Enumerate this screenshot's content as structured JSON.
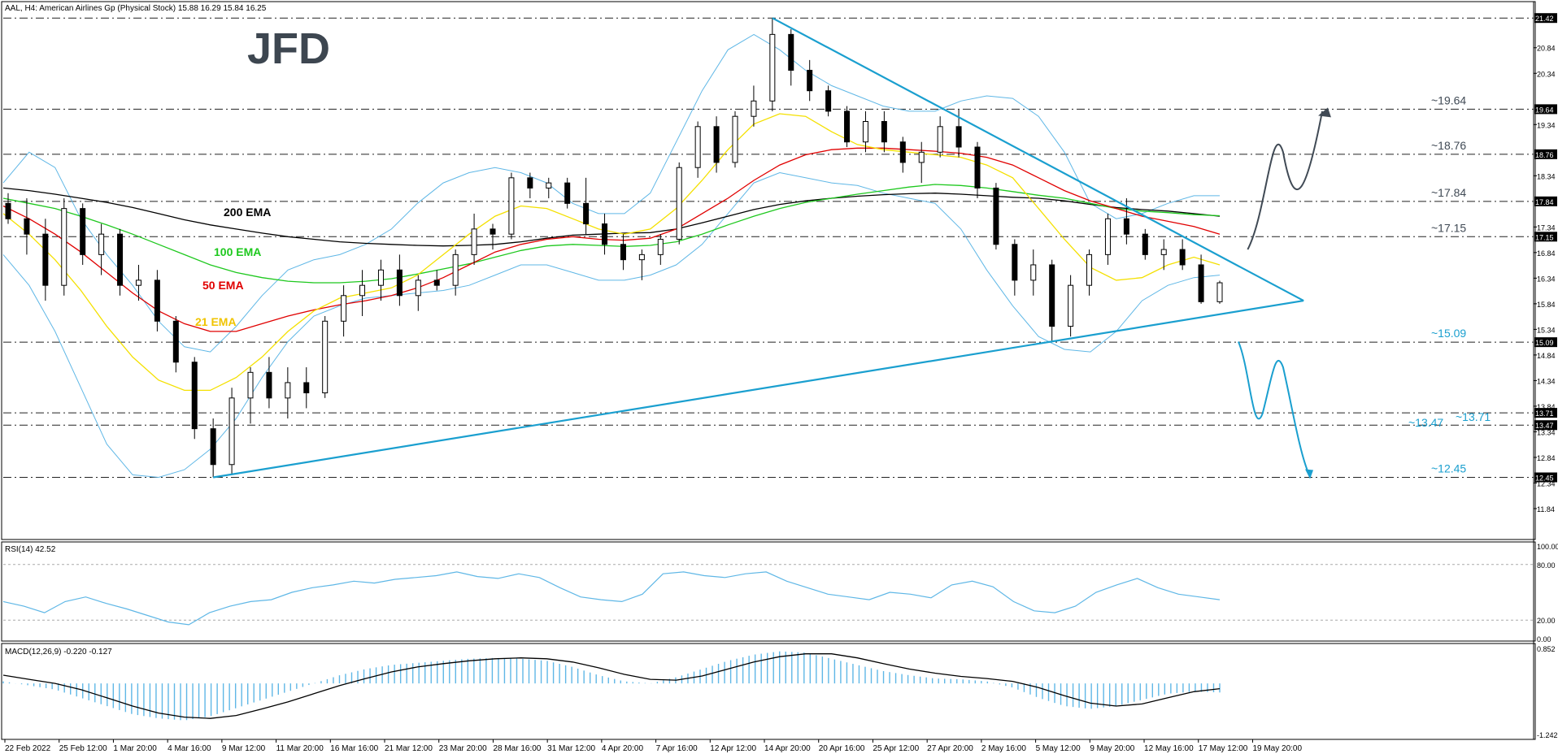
{
  "header": {
    "symbol_line": "AAL, H4:  American Airlines Gp (Physical Stock)  15.88 16.29 15.84 16.25",
    "logo": "JFD"
  },
  "colors": {
    "up_candle": "#ffffff",
    "down_candle": "#000000",
    "ema21": "#f4e000",
    "ema50": "#e00000",
    "ema100": "#1ec81e",
    "ema200": "#000000",
    "bollinger": "#5fb7e6",
    "trendline": "#1a9fcf",
    "level_label": "#1a9fcf",
    "arrow_up": "#404a55",
    "arrow_down": "#1a9fcf",
    "rsi": "#5fb7e6",
    "macd_hist": "#5fb7e6",
    "macd_signal": "#000000"
  },
  "chart_data": [
    {
      "type": "candlestick",
      "title": "AAL, H4:  American Airlines Gp (Physical Stock)  15.88 16.29 15.84 16.25",
      "ylim": [
        11.3,
        21.55
      ],
      "y_ticks": [
        "21.42",
        "20.84",
        "20.34",
        "19.64",
        "19.34",
        "18.76",
        "18.34",
        "17.84",
        "17.34",
        "17.15",
        "16.84",
        "16.34",
        "15.84",
        "15.34",
        "15.09",
        "14.84",
        "14.34",
        "13.84",
        "13.71",
        "13.47",
        "13.34",
        "12.84",
        "12.45",
        "12.34",
        "11.84"
      ],
      "y_tick_values": [
        21.42,
        20.84,
        20.34,
        19.64,
        19.34,
        18.76,
        18.34,
        17.84,
        17.34,
        17.15,
        16.84,
        16.34,
        15.84,
        15.34,
        15.09,
        14.84,
        14.34,
        13.84,
        13.71,
        13.47,
        13.34,
        12.84,
        12.45,
        12.34,
        11.84
      ],
      "x_ticks": [
        "22 Feb 2022",
        "25 Feb 12:00",
        "1 Mar 20:00",
        "4 Mar 16:00",
        "9 Mar 12:00",
        "11 Mar 20:00",
        "16 Mar 16:00",
        "21 Mar 12:00",
        "23 Mar 20:00",
        "28 Mar 16:00",
        "31 Mar 12:00",
        "4 Apr 20:00",
        "7 Apr 16:00",
        "12 Apr 12:00",
        "14 Apr 20:00",
        "20 Apr 16:00",
        "25 Apr 12:00",
        "27 Apr 20:00",
        "2 May 16:00",
        "5 May 12:00",
        "9 May 20:00",
        "12 May 16:00",
        "17 May 12:00",
        "19 May 20:00"
      ],
      "horizontal_levels": [
        {
          "value": 21.42,
          "label": ""
        },
        {
          "value": 19.64,
          "label": "~19.64"
        },
        {
          "value": 18.76,
          "label": "~18.76"
        },
        {
          "value": 17.84,
          "label": "~17.84"
        },
        {
          "value": 17.15,
          "label": "~17.15"
        },
        {
          "value": 15.09,
          "label": "~15.09"
        },
        {
          "value": 13.71,
          "label": "~13.71"
        },
        {
          "value": 13.47,
          "label": "~13.47"
        },
        {
          "value": 12.45,
          "label": "~12.45"
        }
      ],
      "series": [
        {
          "name": "200 EMA",
          "values": [
            18.1,
            18.05,
            17.98,
            17.9,
            17.82,
            17.72,
            17.6,
            17.48,
            17.38,
            17.3,
            17.22,
            17.15,
            17.1,
            17.05,
            17.02,
            17.0,
            16.98,
            16.97,
            16.98,
            17.0,
            17.05,
            17.12,
            17.18,
            17.2,
            17.22,
            17.23,
            17.3,
            17.42,
            17.55,
            17.68,
            17.78,
            17.85,
            17.9,
            17.94,
            17.97,
            17.99,
            18.0,
            17.98,
            17.95,
            17.92,
            17.9,
            17.85,
            17.78,
            17.72,
            17.68,
            17.65,
            17.6,
            17.55
          ]
        },
        {
          "name": "100 EMA",
          "values": [
            17.9,
            17.8,
            17.7,
            17.55,
            17.38,
            17.2,
            17.0,
            16.8,
            16.6,
            16.45,
            16.35,
            16.28,
            16.25,
            16.25,
            16.28,
            16.33,
            16.42,
            16.52,
            16.62,
            16.75,
            16.88,
            16.97,
            17.0,
            16.98,
            16.96,
            16.98,
            17.05,
            17.2,
            17.38,
            17.55,
            17.7,
            17.82,
            17.9,
            17.98,
            18.05,
            18.12,
            18.17,
            18.15,
            18.1,
            18.03,
            17.96,
            17.9,
            17.8,
            17.7,
            17.65,
            17.62,
            17.58,
            17.56
          ]
        },
        {
          "name": "50 EMA",
          "values": [
            17.75,
            17.5,
            17.2,
            16.85,
            16.45,
            16.05,
            15.7,
            15.45,
            15.3,
            15.3,
            15.45,
            15.6,
            15.72,
            15.82,
            15.9,
            16.0,
            16.15,
            16.35,
            16.6,
            16.85,
            17.0,
            17.1,
            17.15,
            17.1,
            17.08,
            17.12,
            17.3,
            17.6,
            17.9,
            18.25,
            18.55,
            18.75,
            18.85,
            18.88,
            18.88,
            18.85,
            18.82,
            18.78,
            18.7,
            18.55,
            18.3,
            18.05,
            17.85,
            17.7,
            17.55,
            17.45,
            17.35,
            17.2
          ]
        },
        {
          "name": "21 EMA",
          "values": [
            17.6,
            17.2,
            16.7,
            16.1,
            15.4,
            14.8,
            14.35,
            14.15,
            14.15,
            14.4,
            14.8,
            15.3,
            15.7,
            15.95,
            16.05,
            16.15,
            16.4,
            16.8,
            17.2,
            17.55,
            17.75,
            17.7,
            17.5,
            17.3,
            17.2,
            17.3,
            17.7,
            18.25,
            18.85,
            19.35,
            19.55,
            19.5,
            19.2,
            18.95,
            18.85,
            18.8,
            18.75,
            18.7,
            18.55,
            18.3,
            17.7,
            17.1,
            16.55,
            16.3,
            16.35,
            16.6,
            16.75,
            16.6
          ]
        },
        {
          "name": "Bollinger Upper",
          "values": [
            18.2,
            18.8,
            18.5,
            17.5,
            16.8,
            16.2,
            15.5,
            15.0,
            14.9,
            15.4,
            16.0,
            16.5,
            16.7,
            16.8,
            17.0,
            17.3,
            17.8,
            18.2,
            18.4,
            18.5,
            18.4,
            18.2,
            17.8,
            17.6,
            17.6,
            18.0,
            19.0,
            20.0,
            20.8,
            21.1,
            20.8,
            20.4,
            20.1,
            19.9,
            19.7,
            19.6,
            19.6,
            19.8,
            19.9,
            19.85,
            19.5,
            18.8,
            17.8,
            17.5,
            17.6,
            17.8,
            17.95,
            17.95
          ]
        },
        {
          "name": "Bollinger Lower",
          "values": [
            16.8,
            16.2,
            15.3,
            14.2,
            13.1,
            12.5,
            12.45,
            12.6,
            13.0,
            13.6,
            14.4,
            15.1,
            15.6,
            15.8,
            15.95,
            16.0,
            16.05,
            16.1,
            16.2,
            16.4,
            16.6,
            16.6,
            16.45,
            16.3,
            16.3,
            16.4,
            16.6,
            17.0,
            17.6,
            18.2,
            18.4,
            18.3,
            18.2,
            18.15,
            18.0,
            17.9,
            17.8,
            17.3,
            16.5,
            15.8,
            15.2,
            14.95,
            14.9,
            15.3,
            15.9,
            16.2,
            16.35,
            16.4
          ]
        }
      ],
      "candles": [
        [
          17.8,
          18.0,
          17.4,
          17.5
        ],
        [
          17.5,
          17.9,
          16.8,
          17.2
        ],
        [
          17.2,
          17.5,
          15.9,
          16.2
        ],
        [
          16.2,
          17.9,
          16.0,
          17.7
        ],
        [
          17.7,
          17.8,
          16.6,
          16.8
        ],
        [
          16.8,
          17.4,
          16.4,
          17.2
        ],
        [
          17.2,
          17.3,
          16.0,
          16.2
        ],
        [
          16.2,
          16.6,
          15.9,
          16.3
        ],
        [
          16.3,
          16.5,
          15.3,
          15.5
        ],
        [
          15.5,
          15.6,
          14.5,
          14.7
        ],
        [
          14.7,
          14.8,
          13.2,
          13.4
        ],
        [
          13.4,
          13.6,
          12.45,
          12.7
        ],
        [
          12.7,
          14.2,
          12.5,
          14.0
        ],
        [
          14.0,
          14.6,
          13.5,
          14.5
        ],
        [
          14.5,
          14.8,
          13.8,
          14.0
        ],
        [
          14.0,
          14.6,
          13.6,
          14.3
        ],
        [
          14.3,
          14.6,
          13.8,
          14.1
        ],
        [
          14.1,
          15.6,
          14.0,
          15.5
        ],
        [
          15.5,
          16.2,
          15.2,
          16.0
        ],
        [
          16.0,
          16.5,
          15.6,
          16.2
        ],
        [
          16.2,
          16.7,
          15.9,
          16.5
        ],
        [
          16.5,
          16.8,
          15.8,
          16.0
        ],
        [
          16.0,
          16.4,
          15.7,
          16.3
        ],
        [
          16.3,
          16.5,
          16.1,
          16.2
        ],
        [
          16.2,
          16.9,
          16.0,
          16.8
        ],
        [
          16.8,
          17.6,
          16.6,
          17.3
        ],
        [
          17.3,
          17.4,
          16.9,
          17.2
        ],
        [
          17.2,
          18.4,
          17.1,
          18.3
        ],
        [
          18.3,
          18.4,
          17.9,
          18.1
        ],
        [
          18.1,
          18.3,
          17.9,
          18.2
        ],
        [
          18.2,
          18.3,
          17.7,
          17.8
        ],
        [
          17.8,
          18.3,
          17.2,
          17.4
        ],
        [
          17.4,
          17.6,
          16.8,
          17.0
        ],
        [
          17.0,
          17.2,
          16.5,
          16.7
        ],
        [
          16.7,
          16.9,
          16.3,
          16.8
        ],
        [
          16.8,
          17.2,
          16.6,
          17.1
        ],
        [
          17.1,
          18.6,
          17.0,
          18.5
        ],
        [
          18.5,
          19.4,
          18.3,
          19.3
        ],
        [
          19.3,
          19.5,
          18.4,
          18.6
        ],
        [
          18.6,
          19.6,
          18.5,
          19.5
        ],
        [
          19.5,
          20.1,
          19.3,
          19.8
        ],
        [
          19.8,
          21.42,
          19.6,
          21.1
        ],
        [
          21.1,
          21.2,
          20.1,
          20.4
        ],
        [
          20.4,
          20.6,
          19.8,
          20.0
        ],
        [
          20.0,
          20.1,
          19.5,
          19.6
        ],
        [
          19.6,
          19.7,
          18.9,
          19.0
        ],
        [
          19.0,
          19.6,
          18.8,
          19.4
        ],
        [
          19.4,
          19.6,
          18.8,
          19.0
        ],
        [
          19.0,
          19.1,
          18.4,
          18.6
        ],
        [
          18.6,
          19.0,
          18.2,
          18.8
        ],
        [
          18.8,
          19.5,
          18.7,
          19.3
        ],
        [
          19.3,
          19.64,
          18.7,
          18.9
        ],
        [
          18.9,
          19.0,
          17.9,
          18.1
        ],
        [
          18.1,
          18.2,
          16.9,
          17.0
        ],
        [
          17.0,
          17.1,
          16.0,
          16.3
        ],
        [
          16.3,
          16.9,
          16.0,
          16.6
        ],
        [
          16.6,
          16.7,
          15.09,
          15.4
        ],
        [
          15.4,
          16.4,
          15.2,
          16.2
        ],
        [
          16.2,
          16.9,
          16.0,
          16.8
        ],
        [
          16.8,
          17.6,
          16.6,
          17.5
        ],
        [
          17.5,
          17.9,
          17.0,
          17.2
        ],
        [
          17.2,
          17.3,
          16.7,
          16.8
        ],
        [
          16.8,
          17.1,
          16.5,
          16.9
        ],
        [
          16.9,
          17.1,
          16.5,
          16.6
        ],
        [
          16.6,
          16.8,
          15.84,
          15.88
        ],
        [
          15.88,
          16.29,
          15.84,
          16.25
        ]
      ]
    },
    {
      "type": "line",
      "title": "RSI(14) 42.52",
      "ylim": [
        0,
        100
      ],
      "y_ticks": [
        "100.00",
        "80.00",
        "20.00",
        "0.00"
      ],
      "y_tick_values": [
        100,
        80,
        20,
        0
      ],
      "series": [
        {
          "name": "RSI(14)",
          "values": [
            40,
            35,
            28,
            40,
            45,
            38,
            32,
            25,
            18,
            15,
            28,
            35,
            40,
            42,
            50,
            55,
            58,
            62,
            60,
            64,
            66,
            68,
            72,
            67,
            65,
            70,
            66,
            55,
            45,
            42,
            40,
            48,
            70,
            72,
            68,
            66,
            70,
            72,
            62,
            55,
            48,
            45,
            42,
            50,
            48,
            44,
            58,
            62,
            56,
            40,
            30,
            28,
            35,
            50,
            58,
            65,
            55,
            48,
            45,
            42
          ]
        }
      ]
    },
    {
      "type": "histogram+line",
      "title": "MACD(12,26,9) -0.220 -0.127",
      "ylim": [
        -1.242,
        0.852
      ],
      "y_ticks": [
        "0.852",
        "-1.242"
      ],
      "y_tick_values": [
        0.852,
        -1.242
      ],
      "series": [
        {
          "name": "MACD",
          "values": [
            0.05,
            -0.05,
            -0.15,
            -0.35,
            -0.55,
            -0.75,
            -0.85,
            -0.9,
            -0.8,
            -0.6,
            -0.4,
            -0.2,
            0.0,
            0.2,
            0.35,
            0.45,
            0.5,
            0.55,
            0.6,
            0.62,
            0.6,
            0.55,
            0.4,
            0.2,
            0.05,
            0.0,
            0.15,
            0.35,
            0.55,
            0.7,
            0.78,
            0.75,
            0.6,
            0.45,
            0.3,
            0.2,
            0.12,
            0.1,
            0.05,
            -0.1,
            -0.35,
            -0.55,
            -0.62,
            -0.55,
            -0.4,
            -0.25,
            -0.2,
            -0.22
          ]
        },
        {
          "name": "Signal",
          "values": [
            0.2,
            0.1,
            0.0,
            -0.15,
            -0.35,
            -0.55,
            -0.72,
            -0.82,
            -0.85,
            -0.78,
            -0.62,
            -0.45,
            -0.25,
            -0.05,
            0.12,
            0.28,
            0.4,
            0.48,
            0.55,
            0.6,
            0.62,
            0.6,
            0.52,
            0.38,
            0.22,
            0.1,
            0.08,
            0.18,
            0.35,
            0.52,
            0.65,
            0.72,
            0.72,
            0.62,
            0.48,
            0.35,
            0.25,
            0.17,
            0.12,
            0.05,
            -0.1,
            -0.3,
            -0.48,
            -0.55,
            -0.5,
            -0.35,
            -0.2,
            -0.127
          ]
        }
      ]
    }
  ],
  "ema_labels": [
    {
      "text": "200 EMA",
      "color": "#000000"
    },
    {
      "text": "100 EMA",
      "color": "#1ec81e"
    },
    {
      "text": "50 EMA",
      "color": "#e00000"
    },
    {
      "text": "21 EMA",
      "color": "#f0c400"
    }
  ],
  "pane_labels": {
    "rsi": "RSI(14) 42.52",
    "macd": "MACD(12,26,9) -0.220 -0.127"
  }
}
